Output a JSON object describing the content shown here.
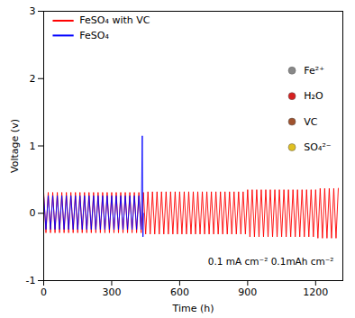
{
  "chart_data": {
    "type": "line",
    "x_label": "Time (h)",
    "y_label": "Voltage (v)",
    "xlim": [
      0,
      1320
    ],
    "ylim": [
      -1,
      3
    ],
    "xticks": [
      0,
      300,
      600,
      900,
      1200
    ],
    "yticks": [
      -1,
      0,
      1,
      2,
      3
    ],
    "legend": "top-left",
    "annotations": [
      "0.1 mA cm⁻² 0.1mAh cm⁻²"
    ],
    "inset_labels": [
      "Fe²⁺",
      "H₂O",
      "VC",
      "SO₄²⁻"
    ],
    "series": [
      {
        "name": "FeSO₄ with VC",
        "color": "#ff0000",
        "x": [
          0,
          10,
          20,
          30,
          40,
          50,
          60,
          70,
          80,
          90,
          100,
          110,
          120,
          130,
          140,
          150,
          160,
          170,
          180,
          190,
          200,
          210,
          220,
          230,
          240,
          250,
          260,
          270,
          280,
          290,
          300,
          310,
          320,
          330,
          340,
          350,
          360,
          370,
          380,
          390,
          400,
          410,
          420,
          430,
          440,
          450,
          460,
          470,
          480,
          490,
          500,
          510,
          520,
          530,
          540,
          550,
          560,
          570,
          580,
          590,
          600,
          610,
          620,
          630,
          640,
          650,
          660,
          670,
          680,
          690,
          700,
          710,
          720,
          730,
          740,
          750,
          760,
          770,
          780,
          790,
          800,
          810,
          820,
          830,
          840,
          850,
          860,
          870,
          880,
          890,
          900,
          910,
          920,
          930,
          940,
          950,
          960,
          970,
          980,
          990,
          1000,
          1010,
          1020,
          1030,
          1040,
          1050,
          1060,
          1070,
          1080,
          1090,
          1100,
          1110,
          1120,
          1130,
          1140,
          1150,
          1160,
          1170,
          1180,
          1190,
          1200,
          1210,
          1220,
          1230,
          1240,
          1250,
          1260,
          1270,
          1280,
          1290,
          1300
        ],
        "values": [
          0.31,
          -0.29,
          0.31,
          -0.29,
          0.31,
          -0.29,
          0.31,
          -0.29,
          0.31,
          -0.29,
          0.31,
          -0.29,
          0.31,
          -0.29,
          0.31,
          -0.29,
          0.31,
          -0.29,
          0.31,
          -0.29,
          0.31,
          -0.29,
          0.31,
          -0.29,
          0.31,
          -0.29,
          0.31,
          -0.29,
          0.31,
          -0.29,
          0.31,
          -0.29,
          0.31,
          -0.29,
          0.31,
          -0.29,
          0.31,
          -0.29,
          0.31,
          -0.29,
          0.31,
          -0.29,
          0.31,
          -0.29,
          0.31,
          -0.31,
          0.32,
          -0.31,
          0.32,
          -0.31,
          0.32,
          -0.31,
          0.32,
          -0.31,
          0.32,
          -0.31,
          0.32,
          -0.31,
          0.32,
          -0.31,
          0.32,
          -0.31,
          0.32,
          -0.31,
          0.32,
          -0.31,
          0.32,
          -0.31,
          0.32,
          -0.31,
          0.32,
          -0.31,
          0.32,
          -0.31,
          0.32,
          -0.31,
          0.32,
          -0.31,
          0.32,
          -0.31,
          0.32,
          -0.31,
          0.32,
          -0.31,
          0.32,
          -0.31,
          0.32,
          -0.31,
          0.32,
          -0.31,
          0.35,
          -0.35,
          0.35,
          -0.35,
          0.35,
          -0.35,
          0.35,
          -0.35,
          0.35,
          -0.35,
          0.35,
          -0.35,
          0.35,
          -0.35,
          0.35,
          -0.35,
          0.35,
          -0.35,
          0.35,
          -0.35,
          0.35,
          -0.35,
          0.35,
          -0.35,
          0.35,
          -0.35,
          0.35,
          -0.35,
          0.35,
          -0.35,
          0.35,
          -0.37,
          0.37,
          -0.37,
          0.37,
          -0.37,
          0.37,
          -0.37,
          0.37,
          -0.37,
          0.37
        ]
      },
      {
        "name": "FeSO₄",
        "color": "#0000ff",
        "x": [
          0,
          10,
          20,
          30,
          40,
          50,
          60,
          70,
          80,
          90,
          100,
          110,
          120,
          130,
          140,
          150,
          160,
          170,
          180,
          190,
          200,
          210,
          220,
          230,
          240,
          250,
          260,
          270,
          280,
          290,
          300,
          310,
          320,
          330,
          340,
          350,
          360,
          370,
          380,
          390,
          400,
          410,
          420,
          430,
          435,
          438,
          440
        ],
        "values": [
          0.26,
          -0.24,
          0.26,
          -0.24,
          0.26,
          -0.24,
          0.26,
          -0.24,
          0.26,
          -0.24,
          0.26,
          -0.24,
          0.26,
          -0.24,
          0.26,
          -0.24,
          0.26,
          -0.24,
          0.26,
          -0.24,
          0.26,
          -0.24,
          0.26,
          -0.24,
          0.26,
          -0.24,
          0.26,
          -0.24,
          0.26,
          -0.24,
          0.26,
          -0.24,
          0.26,
          -0.24,
          0.26,
          -0.24,
          0.26,
          -0.24,
          0.26,
          -0.24,
          0.26,
          -0.24,
          0.26,
          -0.24,
          1.15,
          -0.35,
          0
        ]
      }
    ]
  }
}
